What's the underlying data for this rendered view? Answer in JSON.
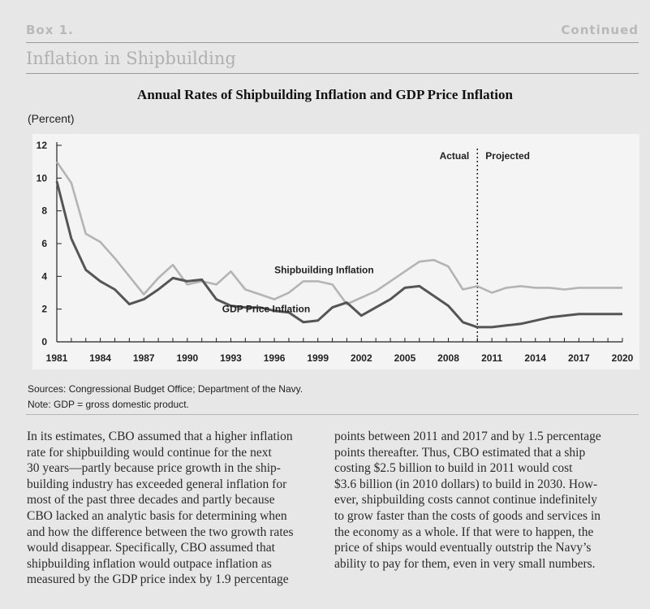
{
  "box": {
    "label": "Box 1.",
    "continued": "Continued",
    "title": "Inflation in Shipbuilding"
  },
  "chart_data": {
    "type": "line",
    "title": "Annual Rates of Shipbuilding Inflation and GDP Price Inflation",
    "units": "(Percent)",
    "xlabel": "",
    "ylabel": "",
    "xlim": [
      1981,
      2020
    ],
    "ylim": [
      0,
      12
    ],
    "y_ticks": [
      "0",
      "2",
      "4",
      "6",
      "8",
      "10",
      "12"
    ],
    "x_tick_labels": [
      "1981",
      "1984",
      "1987",
      "1990",
      "1993",
      "1996",
      "1999",
      "2002",
      "2005",
      "2008",
      "2011",
      "2014",
      "2017",
      "2020"
    ],
    "grid": false,
    "divider": {
      "x": 2010,
      "left_label": "Actual",
      "right_label": "Projected"
    },
    "series": [
      {
        "name": "Shipbuilding Inflation",
        "color": "#b4b4b4",
        "x": [
          1981,
          1982,
          1983,
          1984,
          1985,
          1986,
          1987,
          1988,
          1989,
          1990,
          1991,
          1992,
          1993,
          1994,
          1995,
          1996,
          1997,
          1998,
          1999,
          2000,
          2001,
          2002,
          2003,
          2004,
          2005,
          2006,
          2007,
          2008,
          2009,
          2010,
          2011,
          2012,
          2013,
          2014,
          2015,
          2016,
          2017,
          2018,
          2019,
          2020
        ],
        "values": [
          11.0,
          9.7,
          6.6,
          6.1,
          5.1,
          4.0,
          2.9,
          3.9,
          4.7,
          3.5,
          3.7,
          3.5,
          4.3,
          3.2,
          2.9,
          2.6,
          3.0,
          3.7,
          3.7,
          3.5,
          2.3,
          2.7,
          3.1,
          3.7,
          4.3,
          4.9,
          5.0,
          4.6,
          3.2,
          3.4,
          3.0,
          3.3,
          3.4,
          3.3,
          3.3,
          3.2,
          3.3,
          3.3,
          3.3,
          3.3
        ],
        "label": "Shipbuilding Inflation"
      },
      {
        "name": "GDP Price Inflation",
        "color": "#555555",
        "x": [
          1981,
          1982,
          1983,
          1984,
          1985,
          1986,
          1987,
          1988,
          1989,
          1990,
          1991,
          1992,
          1993,
          1994,
          1995,
          1996,
          1997,
          1998,
          1999,
          2000,
          2001,
          2002,
          2003,
          2004,
          2005,
          2006,
          2007,
          2008,
          2009,
          2010,
          2011,
          2012,
          2013,
          2014,
          2015,
          2016,
          2017,
          2018,
          2019,
          2020
        ],
        "values": [
          9.8,
          6.3,
          4.4,
          3.7,
          3.2,
          2.3,
          2.6,
          3.2,
          3.9,
          3.7,
          3.8,
          2.6,
          2.2,
          2.1,
          2.1,
          1.9,
          1.8,
          1.2,
          1.3,
          2.1,
          2.4,
          1.6,
          2.1,
          2.6,
          3.3,
          3.4,
          2.8,
          2.2,
          1.2,
          0.9,
          0.9,
          1.0,
          1.1,
          1.3,
          1.5,
          1.6,
          1.7,
          1.7,
          1.7,
          1.7
        ],
        "label": "GDP Price Inflation"
      }
    ]
  },
  "notes": {
    "sources": "Sources:  Congressional Budget Office; Department of the Navy.",
    "note": "Note:   GDP = gross domestic product."
  },
  "body": {
    "left": [
      "In its estimates, CBO assumed that a higher inflation",
      "rate for shipbuilding would continue for the next",
      "30 years—partly because price growth in the ship-",
      "building industry has exceeded general inflation for",
      "most of the past three decades and partly because",
      "CBO lacked an analytic basis for determining when",
      "and how the difference between the two growth rates",
      "would disappear. Specifically, CBO assumed that",
      "shipbuilding inflation would outpace inflation as",
      "measured by the GDP price index by 1.9 percentage"
    ],
    "right": [
      "points between 2011 and 2017 and by 1.5 percentage",
      "points thereafter. Thus, CBO estimated that a ship",
      "costing $2.5 billion to build in 2011 would cost",
      "$3.6 billion (in 2010 dollars) to build in 2030. How-",
      "ever, shipbuilding costs cannot continue indefinitely",
      "to grow faster than the costs of goods and services in",
      "the economy as a whole. If that were to happen, the",
      "price of ships would eventually outstrip the Navy’s",
      "ability to pay for them, even in very small numbers."
    ]
  }
}
